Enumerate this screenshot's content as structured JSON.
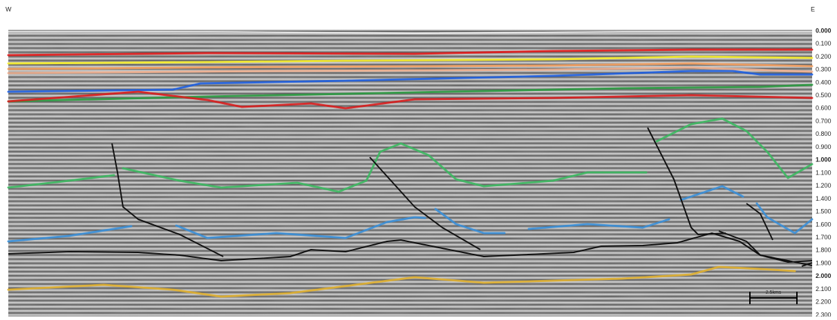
{
  "labels": {
    "west": "W",
    "east": "E"
  },
  "depth_axis": {
    "ticks": [
      "0.000",
      "0.100",
      "0.200",
      "0.300",
      "0.400",
      "0.500",
      "0.600",
      "0.700",
      "0.800",
      "0.900",
      "1.000",
      "1.100",
      "1.200",
      "1.400",
      "1.500",
      "1.600",
      "1.700",
      "1.800",
      "1.900",
      "2.000",
      "2.100",
      "2.200",
      "2.300"
    ]
  },
  "scale_bar": {
    "label": "2.5kms"
  }
}
